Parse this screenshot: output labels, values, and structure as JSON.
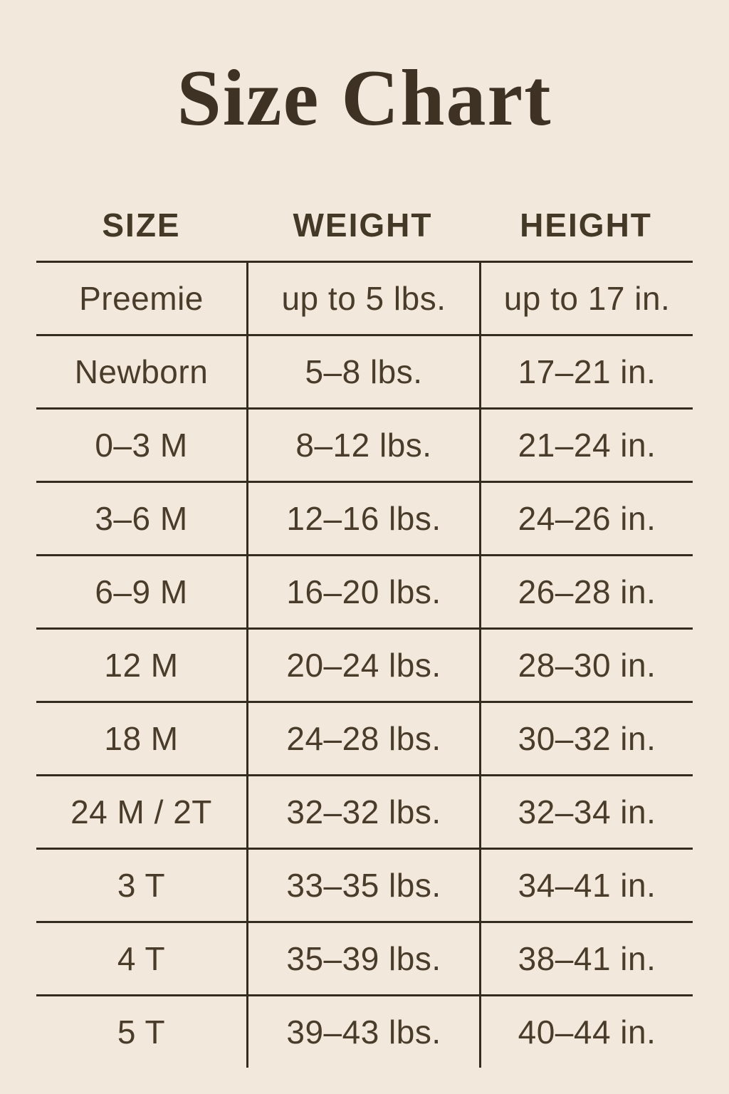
{
  "title": "Size Chart",
  "colors": {
    "background": "#f2e9dc",
    "ink_title": "#3d3224",
    "ink_text": "#4a3c2a",
    "line": "#352c20"
  },
  "chart_data": {
    "type": "table",
    "title": "Size Chart",
    "columns": [
      "SIZE",
      "WEIGHT",
      "HEIGHT"
    ],
    "rows": [
      [
        "Preemie",
        "up to 5 lbs.",
        "up to 17 in."
      ],
      [
        "Newborn",
        "5–8 lbs.",
        "17–21 in."
      ],
      [
        "0–3 M",
        "8–12 lbs.",
        "21–24 in."
      ],
      [
        "3–6 M",
        "12–16 lbs.",
        "24–26 in."
      ],
      [
        "6–9 M",
        "16–20 lbs.",
        "26–28 in."
      ],
      [
        "12 M",
        "20–24 lbs.",
        "28–30 in."
      ],
      [
        "18 M",
        "24–28 lbs.",
        "30–32 in."
      ],
      [
        "24 M / 2T",
        "32–32 lbs.",
        "32–34 in."
      ],
      [
        "3 T",
        "33–35 lbs.",
        "34–41 in."
      ],
      [
        "4 T",
        "35–39 lbs.",
        "38–41 in."
      ],
      [
        "5 T",
        "39–43 lbs.",
        "40–44 in."
      ]
    ],
    "layout": {
      "grid": "horizontal and vertical rules, no outer frame, no bottom rule",
      "legend": "none"
    }
  }
}
